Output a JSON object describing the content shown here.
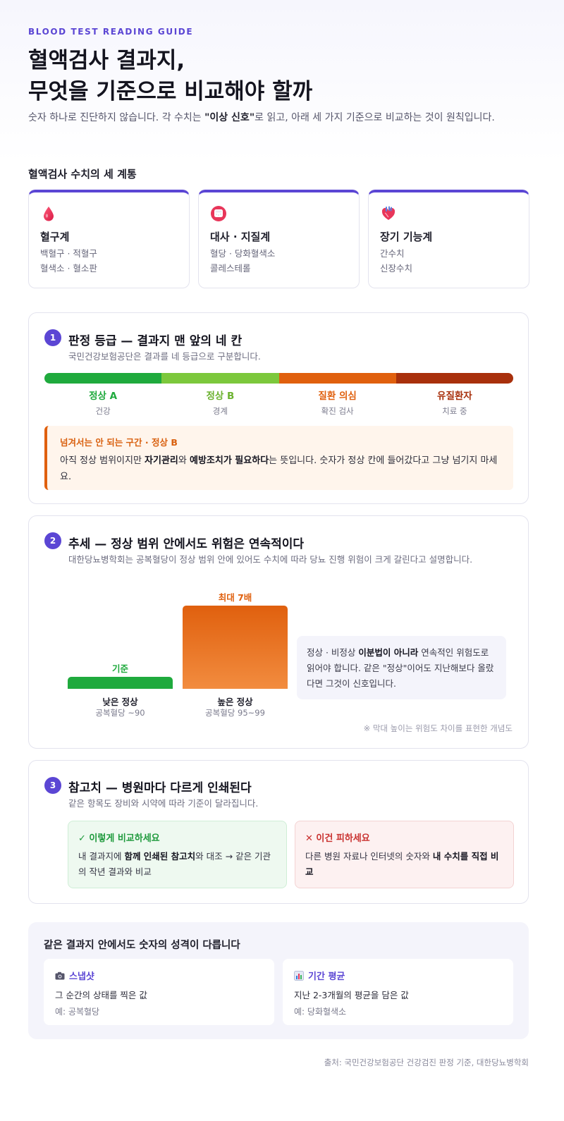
{
  "header": {
    "eyebrow": "BLOOD TEST READING GUIDE",
    "title_line1": "혈액검사 결과지,",
    "title_line2": "무엇을 기준으로 비교해야 할까",
    "lede_pre": "숫자 하나로 진단하지 않습니다. 각 수치는 ",
    "lede_bold": "\"이상 신호\"",
    "lede_post": "로 읽고, 아래 세 가지 기준으로 비교하는 것이 원칙입니다."
  },
  "categories": {
    "heading": "혈액검사 수치의 세 계통",
    "items": [
      {
        "icon": "blood-drop-icon",
        "title": "혈구계",
        "line1": "백혈구 · 적혈구",
        "line2": "혈색소 · 혈소판"
      },
      {
        "icon": "sugar-cube-icon",
        "title": "대사 · 지질계",
        "line1": "혈당 · 당화혈색소",
        "line2": "콜레스테롤"
      },
      {
        "icon": "anatomical-heart-icon",
        "title": "장기 기능계",
        "line1": "간수치",
        "line2": "신장수치"
      }
    ]
  },
  "section1": {
    "num": "1",
    "title": "판정 등급 — 결과지 맨 앞의 네 칸",
    "sub": "국민건강보험공단은 결과를 네 등급으로 구분합니다.",
    "grades": [
      {
        "name": "정상 A",
        "desc": "건강",
        "color": "#1faa3d"
      },
      {
        "name": "정상 B",
        "desc": "경계",
        "color": "#7cc83c"
      },
      {
        "name": "질환 의심",
        "desc": "확진 검사",
        "color": "#e0600e"
      },
      {
        "name": "유질환자",
        "desc": "치료 중",
        "color": "#a8300c"
      }
    ],
    "callout_title": "넘겨서는 안 되는 구간 · 정상 B",
    "callout_pre": "아직 정상 범위이지만 ",
    "callout_bold1": "자기관리",
    "callout_mid": "와 ",
    "callout_bold2": "예방조치가 필요하다",
    "callout_post": "는 뜻입니다. 숫자가 정상 칸에 들어갔다고 그냥 넘기지 마세요."
  },
  "section2": {
    "num": "2",
    "title": "추세 — 정상 범위 안에서도 위험은 연속적이다",
    "sub": "대한당뇨병학회는 공복혈당이 정상 범위 안에 있어도 수치에 따라 당뇨 진행 위험이 크게 갈린다고 설명합니다.",
    "note_pre": "정상 · 비정상 ",
    "note_bold": "이분법이 아니라",
    "note_post": " 연속적인 위험도로 읽어야 합니다. 같은 \"정상\"이어도 지난해보다 올랐다면 그것이 신호입니다.",
    "footnote": "※ 막대 높이는 위험도 차이를 표현한 개념도"
  },
  "chart_data": {
    "type": "bar",
    "categories": [
      "낮은 정상",
      "높은 정상"
    ],
    "category_sublabels": [
      "공복혈당 ~90",
      "공복혈당 95~99"
    ],
    "values": [
      1,
      7
    ],
    "data_labels": [
      "기준",
      "최대 7배"
    ],
    "colors": [
      "#1faa3d",
      "#e0600e"
    ],
    "title": "",
    "xlabel": "",
    "ylabel": "",
    "grid": false
  },
  "section3": {
    "num": "3",
    "title": "참고치 — 병원마다 다르게 인쇄된다",
    "sub": "같은 항목도 장비와 시약에 따라 기준이 달라집니다.",
    "good_title": "✓ 이렇게 비교하세요",
    "good_pre": "내 결과지에 ",
    "good_bold": "함께 인쇄된 참고치",
    "good_post": "와 대조 → 같은 기관의 작년 결과와 비교",
    "bad_title": "✕ 이건 피하세요",
    "bad_pre": "다른 병원 자료나 인터넷의 숫자와 ",
    "bad_bold": "내 수치를 직접 비교"
  },
  "bottom": {
    "title": "같은 결과지 안에서도 숫자의 성격이 다릅니다",
    "items": [
      {
        "icon": "camera-icon",
        "title": "스냅샷",
        "desc": "그 순간의 상태를 찍은 값",
        "example": "예: 공복혈당"
      },
      {
        "icon": "bar-chart-icon",
        "title": "기간 평균",
        "desc": "지난 2-3개월의 평균을 담은 값",
        "example": "예: 당화혈색소"
      }
    ]
  },
  "source": "출처: 국민건강보험공단 건강검진 판정 기준, 대한당뇨병학회",
  "colors": {
    "accent": "#5b46d4",
    "warning": "#e0600e"
  }
}
